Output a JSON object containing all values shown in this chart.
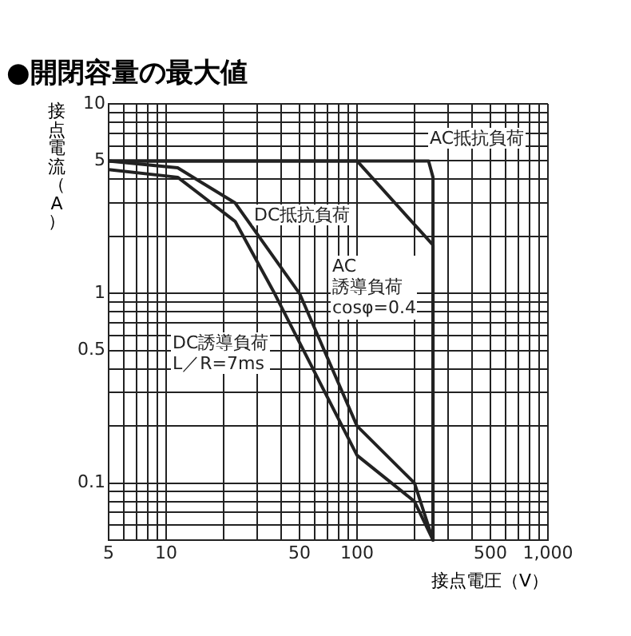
{
  "chart_data": {
    "type": "line",
    "title": "●開閉容量の最大値",
    "xlabel": "接点電圧（V）",
    "ylabel": "接点電流（A）",
    "log": "xy",
    "grid": true,
    "legend": false,
    "marker": "none",
    "line_style": "solid",
    "xlim": [
      5,
      1000
    ],
    "ylim": [
      0.05,
      10
    ],
    "xticks": [
      5,
      {
        "value": 6,
        "label": null
      },
      {
        "value": 7,
        "label": null
      },
      {
        "value": 8,
        "label": null
      },
      {
        "value": 9,
        "label": null
      },
      10,
      {
        "value": 20,
        "label": null
      },
      {
        "value": 30,
        "label": null
      },
      {
        "value": 40,
        "label": null
      },
      50,
      {
        "value": 60,
        "label": null
      },
      {
        "value": 70,
        "label": null
      },
      {
        "value": 80,
        "label": null
      },
      {
        "value": 90,
        "label": null
      },
      100,
      {
        "value": 200,
        "label": null
      },
      {
        "value": 300,
        "label": null
      },
      {
        "value": 400,
        "label": null
      },
      500,
      {
        "value": 600,
        "label": null
      },
      {
        "value": 700,
        "label": null
      },
      {
        "value": 800,
        "label": null
      },
      {
        "value": 900,
        "label": null
      },
      {
        "value": 1000,
        "label": "1,000"
      }
    ],
    "yticks": [
      {
        "value": 0.05,
        "label": null
      },
      {
        "value": 0.06,
        "label": null
      },
      {
        "value": 0.07,
        "label": null
      },
      {
        "value": 0.08,
        "label": null
      },
      {
        "value": 0.09,
        "label": null
      },
      0.1,
      {
        "value": 0.2,
        "label": null
      },
      {
        "value": 0.3,
        "label": null
      },
      {
        "value": 0.4,
        "label": null
      },
      0.5,
      {
        "value": 0.6,
        "label": null
      },
      {
        "value": 0.7,
        "label": null
      },
      {
        "value": 0.8,
        "label": null
      },
      {
        "value": 0.9,
        "label": null
      },
      1,
      {
        "value": 2,
        "label": null
      },
      {
        "value": 3,
        "label": null
      },
      {
        "value": 4,
        "label": null
      },
      5,
      {
        "value": 6,
        "label": null
      },
      {
        "value": 7,
        "label": null
      },
      {
        "value": 8,
        "label": null
      },
      {
        "value": 9,
        "label": null
      },
      10
    ],
    "series": [
      {
        "name": "AC抵抗負荷",
        "color": "#222222",
        "x": [
          5,
          237,
          250,
          250
        ],
        "values": [
          5,
          5,
          4.1,
          0.05
        ]
      },
      {
        "name": "AC\n誘導負荷\ncosφ=0.4",
        "color": "#222222",
        "x": [
          5,
          100,
          250,
          250
        ],
        "values": [
          5,
          5,
          1.8,
          0.05
        ]
      },
      {
        "name": "DC抵抗負荷",
        "color": "#222222",
        "x": [
          5,
          11.5,
          23,
          50,
          100,
          200,
          250
        ],
        "values": [
          5,
          4.6,
          3,
          1,
          0.2,
          0.1,
          0.05
        ]
      },
      {
        "name": "DC誘導負荷\nL／R=7ms",
        "color": "#222222",
        "x": [
          5,
          11.5,
          23,
          37,
          100,
          200,
          250
        ],
        "values": [
          4.5,
          4.1,
          2.4,
          1,
          0.14,
          0.08,
          0.05
        ]
      }
    ]
  }
}
